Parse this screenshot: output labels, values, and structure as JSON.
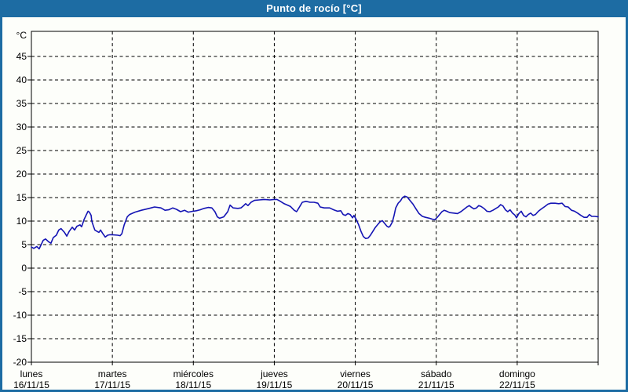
{
  "window": {
    "title": "Punto de rocío [°C]",
    "title_bar_color": "#1d6ca3",
    "border_color": "#1d6ca3",
    "background_color": "#fdfefa"
  },
  "chart_data": {
    "type": "line",
    "title": "Punto de rocío [°C]",
    "series_name": "Punto de rocío",
    "unit_label": "°C",
    "line_color": "#1414b4",
    "grid": true,
    "grid_style": "dashed",
    "grid_color": "#000000",
    "y_ticks": [
      45,
      40,
      35,
      30,
      25,
      20,
      15,
      10,
      5,
      0,
      -5,
      -10,
      -15,
      -20
    ],
    "y_min": -20,
    "y_axis_top": 50.33,
    "x_total_hours": 168,
    "x_days": 7,
    "x_day_labels": [
      {
        "name": "lunes",
        "date": "16/11/15"
      },
      {
        "name": "martes",
        "date": "17/11/15"
      },
      {
        "name": "miércoles",
        "date": "18/11/15"
      },
      {
        "name": "jueves",
        "date": "19/11/15"
      },
      {
        "name": "viernes",
        "date": "20/11/15"
      },
      {
        "name": "sábado",
        "date": "21/11/15"
      },
      {
        "name": "domingo",
        "date": "22/11/15"
      }
    ],
    "points": [
      [
        0,
        4.5
      ],
      [
        0.7,
        4.2
      ],
      [
        1.6,
        4.6
      ],
      [
        2.3,
        4.1
      ],
      [
        3.5,
        5.9
      ],
      [
        4.2,
        6.2
      ],
      [
        5.1,
        5.6
      ],
      [
        5.8,
        5.3
      ],
      [
        6.5,
        6.5
      ],
      [
        7.4,
        7.0
      ],
      [
        8.1,
        8.1
      ],
      [
        8.8,
        8.4
      ],
      [
        9.8,
        7.6
      ],
      [
        10.5,
        6.8
      ],
      [
        11.2,
        7.8
      ],
      [
        12.1,
        8.7
      ],
      [
        12.8,
        8.1
      ],
      [
        13.5,
        8.9
      ],
      [
        14.4,
        9.2
      ],
      [
        14.9,
        8.8
      ],
      [
        15.6,
        10.3
      ],
      [
        16.3,
        11.4
      ],
      [
        16.8,
        12.1
      ],
      [
        17.2,
        11.9
      ],
      [
        17.7,
        11.2
      ],
      [
        17.9,
        10.0
      ],
      [
        18.4,
        8.9
      ],
      [
        18.8,
        8.1
      ],
      [
        19.5,
        7.8
      ],
      [
        20.0,
        7.6
      ],
      [
        20.5,
        8.1
      ],
      [
        21.2,
        7.3
      ],
      [
        21.9,
        6.6
      ],
      [
        22.6,
        7.0
      ],
      [
        23.3,
        7.1
      ],
      [
        24.0,
        7.1
      ],
      [
        25.6,
        7.0
      ],
      [
        26.3,
        6.9
      ],
      [
        26.8,
        7.3
      ],
      [
        27.5,
        9.2
      ],
      [
        28.4,
        10.9
      ],
      [
        29.1,
        11.4
      ],
      [
        30.7,
        11.9
      ],
      [
        32.6,
        12.3
      ],
      [
        34.9,
        12.7
      ],
      [
        36.5,
        13.0
      ],
      [
        38.4,
        12.8
      ],
      [
        39.6,
        12.3
      ],
      [
        40.7,
        12.4
      ],
      [
        41.9,
        12.8
      ],
      [
        43.0,
        12.5
      ],
      [
        44.2,
        12.0
      ],
      [
        45.4,
        12.3
      ],
      [
        46.5,
        11.9
      ],
      [
        47.9,
        12.1
      ],
      [
        48.9,
        12.2
      ],
      [
        50.0,
        12.4
      ],
      [
        51.2,
        12.7
      ],
      [
        52.4,
        12.9
      ],
      [
        53.5,
        12.8
      ],
      [
        54.4,
        12.0
      ],
      [
        55.1,
        10.9
      ],
      [
        55.8,
        10.6
      ],
      [
        57.0,
        10.9
      ],
      [
        58.2,
        12.0
      ],
      [
        58.9,
        13.4
      ],
      [
        59.8,
        12.8
      ],
      [
        61.2,
        12.7
      ],
      [
        62.1,
        12.8
      ],
      [
        62.8,
        13.2
      ],
      [
        63.5,
        13.7
      ],
      [
        64.2,
        13.3
      ],
      [
        65.1,
        14.0
      ],
      [
        66.1,
        14.4
      ],
      [
        67.5,
        14.5
      ],
      [
        69.1,
        14.6
      ],
      [
        70.7,
        14.5
      ],
      [
        71.9,
        14.6
      ],
      [
        72.8,
        14.6
      ],
      [
        73.8,
        14.2
      ],
      [
        74.9,
        13.7
      ],
      [
        75.9,
        13.4
      ],
      [
        76.8,
        13.1
      ],
      [
        77.9,
        12.3
      ],
      [
        78.6,
        12.0
      ],
      [
        79.3,
        12.8
      ],
      [
        80.3,
        14.0
      ],
      [
        81.4,
        14.2
      ],
      [
        82.6,
        14.0
      ],
      [
        83.8,
        14.0
      ],
      [
        84.9,
        13.8
      ],
      [
        85.6,
        13.0
      ],
      [
        86.8,
        12.8
      ],
      [
        88.4,
        12.8
      ],
      [
        89.6,
        12.4
      ],
      [
        90.7,
        12.1
      ],
      [
        91.7,
        12.2
      ],
      [
        92.4,
        11.4
      ],
      [
        93.1,
        11.2
      ],
      [
        93.8,
        11.6
      ],
      [
        94.5,
        11.4
      ],
      [
        95.2,
        10.7
      ],
      [
        95.6,
        11.2
      ],
      [
        96.3,
        10.3
      ],
      [
        97.0,
        9.2
      ],
      [
        97.7,
        7.8
      ],
      [
        98.4,
        6.7
      ],
      [
        99.1,
        6.3
      ],
      [
        99.8,
        6.4
      ],
      [
        100.5,
        7.0
      ],
      [
        101.2,
        7.8
      ],
      [
        101.9,
        8.6
      ],
      [
        102.6,
        9.2
      ],
      [
        103.3,
        9.8
      ],
      [
        104.0,
        10.1
      ],
      [
        104.7,
        9.5
      ],
      [
        105.4,
        8.9
      ],
      [
        105.9,
        8.7
      ],
      [
        106.3,
        8.9
      ],
      [
        107.0,
        9.8
      ],
      [
        107.5,
        11.2
      ],
      [
        108.0,
        12.8
      ],
      [
        108.7,
        13.8
      ],
      [
        109.4,
        14.3
      ],
      [
        110.0,
        15.0
      ],
      [
        110.7,
        15.3
      ],
      [
        111.4,
        15.1
      ],
      [
        112.2,
        14.4
      ],
      [
        113.1,
        13.6
      ],
      [
        114.0,
        12.6
      ],
      [
        114.9,
        11.6
      ],
      [
        115.9,
        11.0
      ],
      [
        116.8,
        10.8
      ],
      [
        118.0,
        10.6
      ],
      [
        118.9,
        10.4
      ],
      [
        119.6,
        10.3
      ],
      [
        120.3,
        10.8
      ],
      [
        121.0,
        11.4
      ],
      [
        121.7,
        12.0
      ],
      [
        122.4,
        12.3
      ],
      [
        123.1,
        12.1
      ],
      [
        124.0,
        11.8
      ],
      [
        125.2,
        11.7
      ],
      [
        126.3,
        11.6
      ],
      [
        127.3,
        12.0
      ],
      [
        128.2,
        12.5
      ],
      [
        129.1,
        13.0
      ],
      [
        129.8,
        13.3
      ],
      [
        130.5,
        12.9
      ],
      [
        131.2,
        12.6
      ],
      [
        131.9,
        12.8
      ],
      [
        132.6,
        13.3
      ],
      [
        133.3,
        13.1
      ],
      [
        134.3,
        12.6
      ],
      [
        135.0,
        12.1
      ],
      [
        135.9,
        12.0
      ],
      [
        136.8,
        12.3
      ],
      [
        137.7,
        12.7
      ],
      [
        138.4,
        13.0
      ],
      [
        139.1,
        13.5
      ],
      [
        139.8,
        13.2
      ],
      [
        140.5,
        12.4
      ],
      [
        141.2,
        12.0
      ],
      [
        141.9,
        12.4
      ],
      [
        142.6,
        11.7
      ],
      [
        143.3,
        11.3
      ],
      [
        143.8,
        10.7
      ],
      [
        144.5,
        11.6
      ],
      [
        145.2,
        12.1
      ],
      [
        145.9,
        11.2
      ],
      [
        146.6,
        10.9
      ],
      [
        147.3,
        11.4
      ],
      [
        148.0,
        11.7
      ],
      [
        148.7,
        11.2
      ],
      [
        149.4,
        11.4
      ],
      [
        150.3,
        12.1
      ],
      [
        151.2,
        12.6
      ],
      [
        152.2,
        13.1
      ],
      [
        153.1,
        13.6
      ],
      [
        154.0,
        13.8
      ],
      [
        155.2,
        13.8
      ],
      [
        156.3,
        13.7
      ],
      [
        157.3,
        13.8
      ],
      [
        158.2,
        13.1
      ],
      [
        159.1,
        13.0
      ],
      [
        160.1,
        12.3
      ],
      [
        161.0,
        12.1
      ],
      [
        161.9,
        11.7
      ],
      [
        162.9,
        11.2
      ],
      [
        163.8,
        10.8
      ],
      [
        164.7,
        10.8
      ],
      [
        165.4,
        11.4
      ],
      [
        166.1,
        11.0
      ],
      [
        167.0,
        11.0
      ],
      [
        168.0,
        10.9
      ]
    ]
  }
}
